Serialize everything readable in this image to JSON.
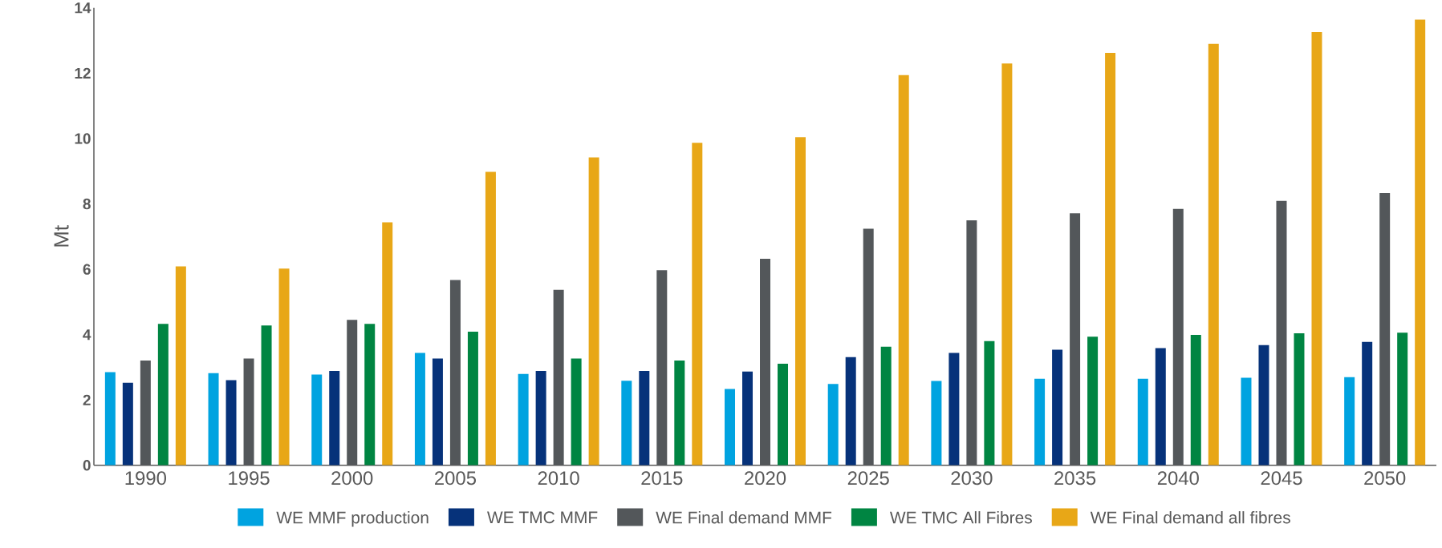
{
  "chart_data": {
    "type": "bar",
    "ylabel": "Mt",
    "categories": [
      "1990",
      "1995",
      "2000",
      "2005",
      "2010",
      "2015",
      "2020",
      "2025",
      "2030",
      "2035",
      "2040",
      "2045",
      "2050"
    ],
    "series": [
      {
        "name": "WE MMF production",
        "color": "#00a3e0",
        "values": [
          2.85,
          2.82,
          2.78,
          3.44,
          2.8,
          2.59,
          2.34,
          2.49,
          2.58,
          2.65,
          2.65,
          2.68,
          2.7
        ]
      },
      {
        "name": "WE TMC MMF",
        "color": "#06327a",
        "values": [
          2.53,
          2.61,
          2.89,
          3.27,
          2.89,
          2.89,
          2.87,
          3.31,
          3.44,
          3.54,
          3.59,
          3.68,
          3.78
        ]
      },
      {
        "name": "WE Final demand MMF",
        "color": "#53575a",
        "values": [
          3.21,
          3.27,
          4.45,
          5.67,
          5.37,
          5.97,
          6.32,
          7.24,
          7.5,
          7.71,
          7.85,
          8.09,
          8.33
        ]
      },
      {
        "name": "WE TMC All Fibres",
        "color": "#008542",
        "values": [
          4.33,
          4.28,
          4.33,
          4.09,
          3.27,
          3.21,
          3.11,
          3.63,
          3.8,
          3.94,
          3.99,
          4.04,
          4.06
        ]
      },
      {
        "name": "WE Final demand all fibres",
        "color": "#e8a717",
        "values": [
          6.09,
          6.02,
          7.44,
          8.98,
          9.42,
          9.87,
          10.04,
          11.94,
          12.3,
          12.62,
          12.9,
          13.26,
          13.64
        ]
      }
    ],
    "ylim": [
      0,
      14
    ],
    "yticks": [
      0,
      2,
      4,
      6,
      8,
      10,
      12,
      14
    ],
    "legend": "bottom"
  }
}
